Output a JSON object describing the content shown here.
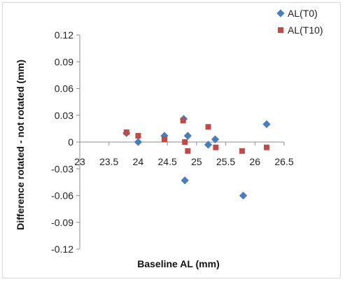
{
  "chart_data": {
    "type": "scatter",
    "title": "",
    "xlabel": "Baseline AL (mm)",
    "ylabel": "Difference rotated - not rotated (mm)",
    "xlim": [
      23,
      26.5
    ],
    "ylim": [
      -0.12,
      0.12
    ],
    "x_ticks": [
      "23",
      "23.5",
      "24",
      "24.5",
      "25",
      "25.5",
      "26",
      "26.5"
    ],
    "y_ticks": [
      "0.12",
      "0.09",
      "0.06",
      "0.03",
      "0",
      "-0.03",
      "-0.06",
      "-0.09",
      "-0.12"
    ],
    "grid": false,
    "legend_position": "top-right",
    "series": [
      {
        "name": "AL(T0)",
        "marker": "diamond",
        "color": "#4a7ebb",
        "points": [
          {
            "x": 23.8,
            "y": 0.01
          },
          {
            "x": 24.0,
            "y": 0.0
          },
          {
            "x": 24.45,
            "y": 0.007
          },
          {
            "x": 24.78,
            "y": 0.026
          },
          {
            "x": 24.8,
            "y": -0.043
          },
          {
            "x": 24.85,
            "y": 0.007
          },
          {
            "x": 25.2,
            "y": -0.003
          },
          {
            "x": 25.32,
            "y": 0.003
          },
          {
            "x": 25.8,
            "y": -0.06
          },
          {
            "x": 26.2,
            "y": 0.02
          }
        ]
      },
      {
        "name": "AL(T10)",
        "marker": "square",
        "color": "#be4b48",
        "points": [
          {
            "x": 23.8,
            "y": 0.011
          },
          {
            "x": 24.0,
            "y": 0.007
          },
          {
            "x": 24.45,
            "y": 0.003
          },
          {
            "x": 24.77,
            "y": 0.024
          },
          {
            "x": 24.8,
            "y": 0.0
          },
          {
            "x": 24.85,
            "y": -0.01
          },
          {
            "x": 25.2,
            "y": 0.017
          },
          {
            "x": 25.33,
            "y": -0.006
          },
          {
            "x": 25.78,
            "y": -0.01
          },
          {
            "x": 26.2,
            "y": -0.006
          }
        ]
      }
    ]
  }
}
